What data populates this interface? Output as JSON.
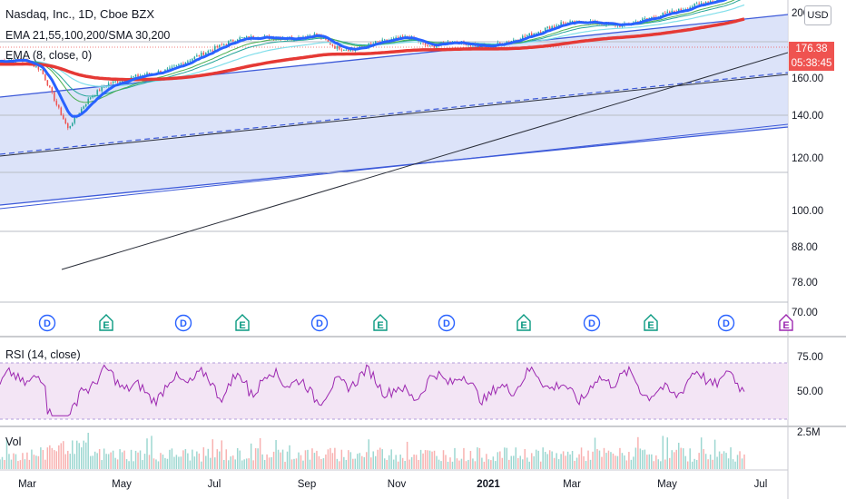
{
  "header": {
    "symbol": "Nasdaq, Inc., 1D, Cboe BZX",
    "indicators": "EMA 21,55,100,200/SMA 30,200",
    "ema_line": "EMA (8, close, 0)",
    "currency": "USD"
  },
  "price_labels": {
    "last": "176.38",
    "countdown": "05:38:45"
  },
  "colors": {
    "up": "#26a69a",
    "down": "#ef5350",
    "ema8": "#2962ff",
    "sma200": "#e53935",
    "channel": "#3d5ad9",
    "rsi": "#9c27b0",
    "rsi_band": "#f3e5f5"
  },
  "chart_data": {
    "type": "candlestick",
    "price_axis": {
      "scale": "log",
      "ticks": [
        "200.00",
        "176.38",
        "160.00",
        "140.00",
        "120.00",
        "100.00",
        "88.00",
        "78.00",
        "70.00"
      ]
    },
    "rsi_axis": {
      "ticks": [
        "75.00",
        "50.00"
      ]
    },
    "volume_axis": {
      "ticks": [
        "2.5M"
      ]
    },
    "x_ticks": [
      "Mar",
      "May",
      "Jul",
      "Sep",
      "Nov",
      "2021",
      "Mar",
      "May",
      "Jul"
    ],
    "panes": [
      "RSI (14, close)",
      "Vol"
    ],
    "events": [
      "D",
      "E",
      "D",
      "E",
      "D",
      "E",
      "D",
      "E",
      "D",
      "E",
      "D",
      "E"
    ],
    "series": [
      {
        "name": "EMA (8, close, 0)"
      },
      {
        "name": "EMA 21,55,100,200/SMA 30,200"
      }
    ]
  }
}
